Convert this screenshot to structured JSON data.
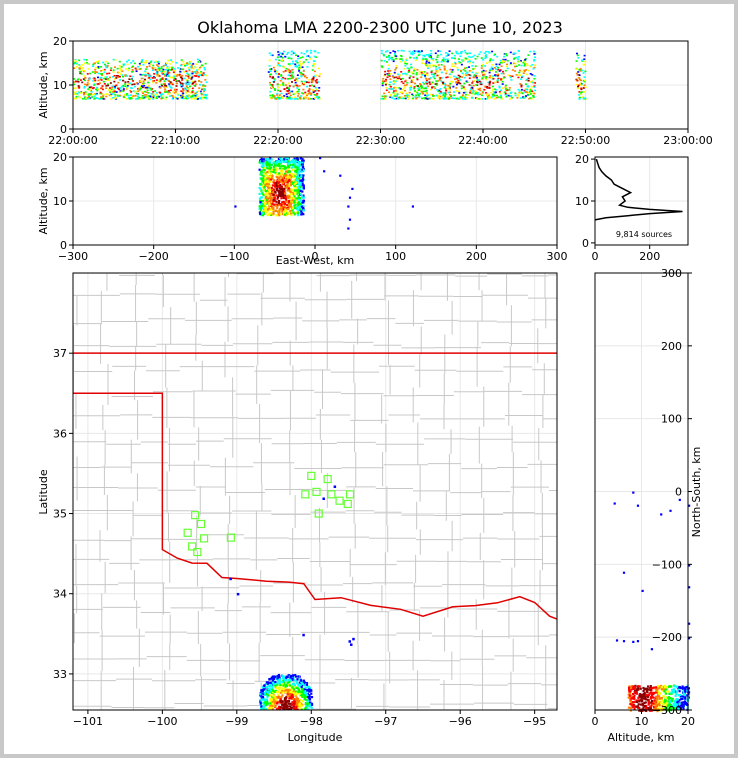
{
  "title": "Oklahoma LMA 2200-2300 UTC June 10, 2023",
  "colors": {
    "state_border": "#e00000",
    "county_lines": "#c8c8c8",
    "stations": "#66ff33",
    "density_scale": [
      "#0000ff",
      "#00ffff",
      "#00ff00",
      "#ffff00",
      "#ff8000",
      "#ff0000",
      "#8b0000"
    ]
  },
  "chart_data": [
    {
      "id": "time_height",
      "type": "scatter",
      "ylabel": "Altitude, km",
      "xlabel": "",
      "ylim": [
        0,
        20
      ],
      "yticks": [
        "0",
        "10",
        "20"
      ],
      "xticks": [
        "22:00:00",
        "22:10:00",
        "22:20:00",
        "22:30:00",
        "22:40:00",
        "22:50:00",
        "23:00:00"
      ],
      "activity": [
        {
          "t_min": [
            0,
            13
          ],
          "alt_km": [
            7,
            16
          ]
        },
        {
          "t_min": [
            19,
            24
          ],
          "alt_km": [
            7,
            18
          ]
        },
        {
          "t_min": [
            30,
            45
          ],
          "alt_km": [
            7,
            18
          ]
        },
        {
          "t_min": [
            49,
            50
          ],
          "alt_km": [
            7,
            18
          ]
        }
      ]
    },
    {
      "id": "ew_altitude",
      "type": "scatter",
      "xlabel": "East-West, km",
      "ylabel": "Altitude, km",
      "xlim": [
        -300,
        300
      ],
      "ylim": [
        0,
        20
      ],
      "xticks": [
        "−300",
        "−200",
        "−100",
        "0",
        "100",
        "200",
        "300"
      ],
      "yticks": [
        "0",
        "10",
        "20"
      ],
      "core": {
        "x_km": [
          -70,
          -15
        ],
        "alt_km": [
          7,
          20
        ]
      }
    },
    {
      "id": "altitude_histogram",
      "type": "line",
      "xticks": [
        "0",
        "200"
      ],
      "yticks": [
        "0",
        "10",
        "20"
      ],
      "ylim": [
        0,
        20
      ],
      "annotation": "9,814 sources",
      "profile": [
        {
          "alt": 5.5,
          "count": 0
        },
        {
          "alt": 6,
          "count": 40
        },
        {
          "alt": 6.5,
          "count": 120
        },
        {
          "alt": 7,
          "count": 200
        },
        {
          "alt": 7.5,
          "count": 320
        },
        {
          "alt": 8,
          "count": 200
        },
        {
          "alt": 8.5,
          "count": 120
        },
        {
          "alt": 9,
          "count": 90
        },
        {
          "alt": 10,
          "count": 110
        },
        {
          "alt": 11,
          "count": 100
        },
        {
          "alt": 12,
          "count": 130
        },
        {
          "alt": 13,
          "count": 100
        },
        {
          "alt": 14,
          "count": 70
        },
        {
          "alt": 15,
          "count": 60
        },
        {
          "alt": 16,
          "count": 40
        },
        {
          "alt": 17,
          "count": 25
        },
        {
          "alt": 18,
          "count": 15
        },
        {
          "alt": 19,
          "count": 10
        },
        {
          "alt": 20,
          "count": 5
        }
      ]
    },
    {
      "id": "plan_view",
      "type": "scatter",
      "xlabel": "Longitude",
      "ylabel": "Latitude",
      "xlim": [
        -101.2,
        -94.7
      ],
      "ylim": [
        32.55,
        38.0
      ],
      "xticks": [
        "−101",
        "−100",
        "−99",
        "−98",
        "−97",
        "−96",
        "−95"
      ],
      "yticks": [
        "33",
        "34",
        "35",
        "36",
        "37"
      ],
      "stations": [
        {
          "lon": -99.56,
          "lat": 34.98
        },
        {
          "lon": -99.48,
          "lat": 34.87
        },
        {
          "lon": -99.66,
          "lat": 34.76
        },
        {
          "lon": -99.44,
          "lat": 34.69
        },
        {
          "lon": -99.6,
          "lat": 34.59
        },
        {
          "lon": -99.53,
          "lat": 34.52
        },
        {
          "lon": -99.08,
          "lat": 34.7
        },
        {
          "lon": -98.0,
          "lat": 35.47
        },
        {
          "lon": -97.78,
          "lat": 35.43
        },
        {
          "lon": -98.08,
          "lat": 35.24
        },
        {
          "lon": -97.93,
          "lat": 35.27
        },
        {
          "lon": -97.73,
          "lat": 35.24
        },
        {
          "lon": -97.48,
          "lat": 35.24
        },
        {
          "lon": -97.62,
          "lat": 35.16
        },
        {
          "lon": -97.9,
          "lat": 35.0
        },
        {
          "lon": -97.51,
          "lat": 35.12
        }
      ],
      "core": {
        "lon": [
          -98.7,
          -98.0
        ],
        "lat": [
          32.55,
          33.0
        ]
      }
    },
    {
      "id": "ns_altitude",
      "type": "scatter",
      "ylabel": "North-South, km",
      "xlabel": "Altitude, km",
      "ylim": [
        -300,
        300
      ],
      "xlim": [
        0,
        20
      ],
      "xticks": [
        "0",
        "10",
        "20"
      ],
      "yticks": [
        "−300",
        "−200",
        "−100",
        "0",
        "100",
        "200",
        "300"
      ],
      "core": {
        "alt_km": [
          7,
          20
        ],
        "y_km": [
          -300,
          -265
        ]
      }
    }
  ]
}
